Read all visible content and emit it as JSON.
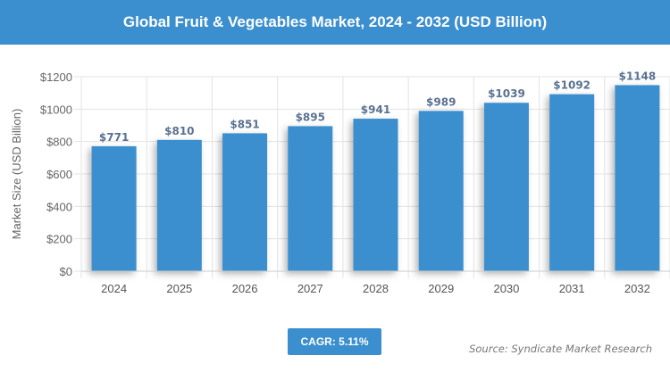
{
  "chart_data": {
    "type": "bar",
    "title": "Global Fruit & Vegetables Market, 2024 - 2032 (USD Billion)",
    "xlabel": "",
    "ylabel": "Market Size (USD Billion)",
    "categories": [
      "2024",
      "2025",
      "2026",
      "2027",
      "2028",
      "2029",
      "2030",
      "2031",
      "2032"
    ],
    "values": [
      771,
      810,
      851,
      895,
      941,
      989,
      1039,
      1092,
      1148
    ],
    "data_labels": [
      "$771",
      "$810",
      "$851",
      "$895",
      "$941",
      "$989",
      "$1039",
      "$1092",
      "$1148"
    ],
    "ylim": [
      0,
      1200
    ],
    "yticks": [
      0,
      200,
      400,
      600,
      800,
      1000,
      1200
    ],
    "ytick_labels": [
      "$0",
      "$200",
      "$400",
      "$600",
      "$800",
      "$1000",
      "$1200"
    ],
    "grid": true,
    "bar_color": "#3b8fce",
    "label_color": "#5a7191"
  },
  "cagr": "CAGR: 5.11%",
  "source": "Source: Syndicate Market Research"
}
